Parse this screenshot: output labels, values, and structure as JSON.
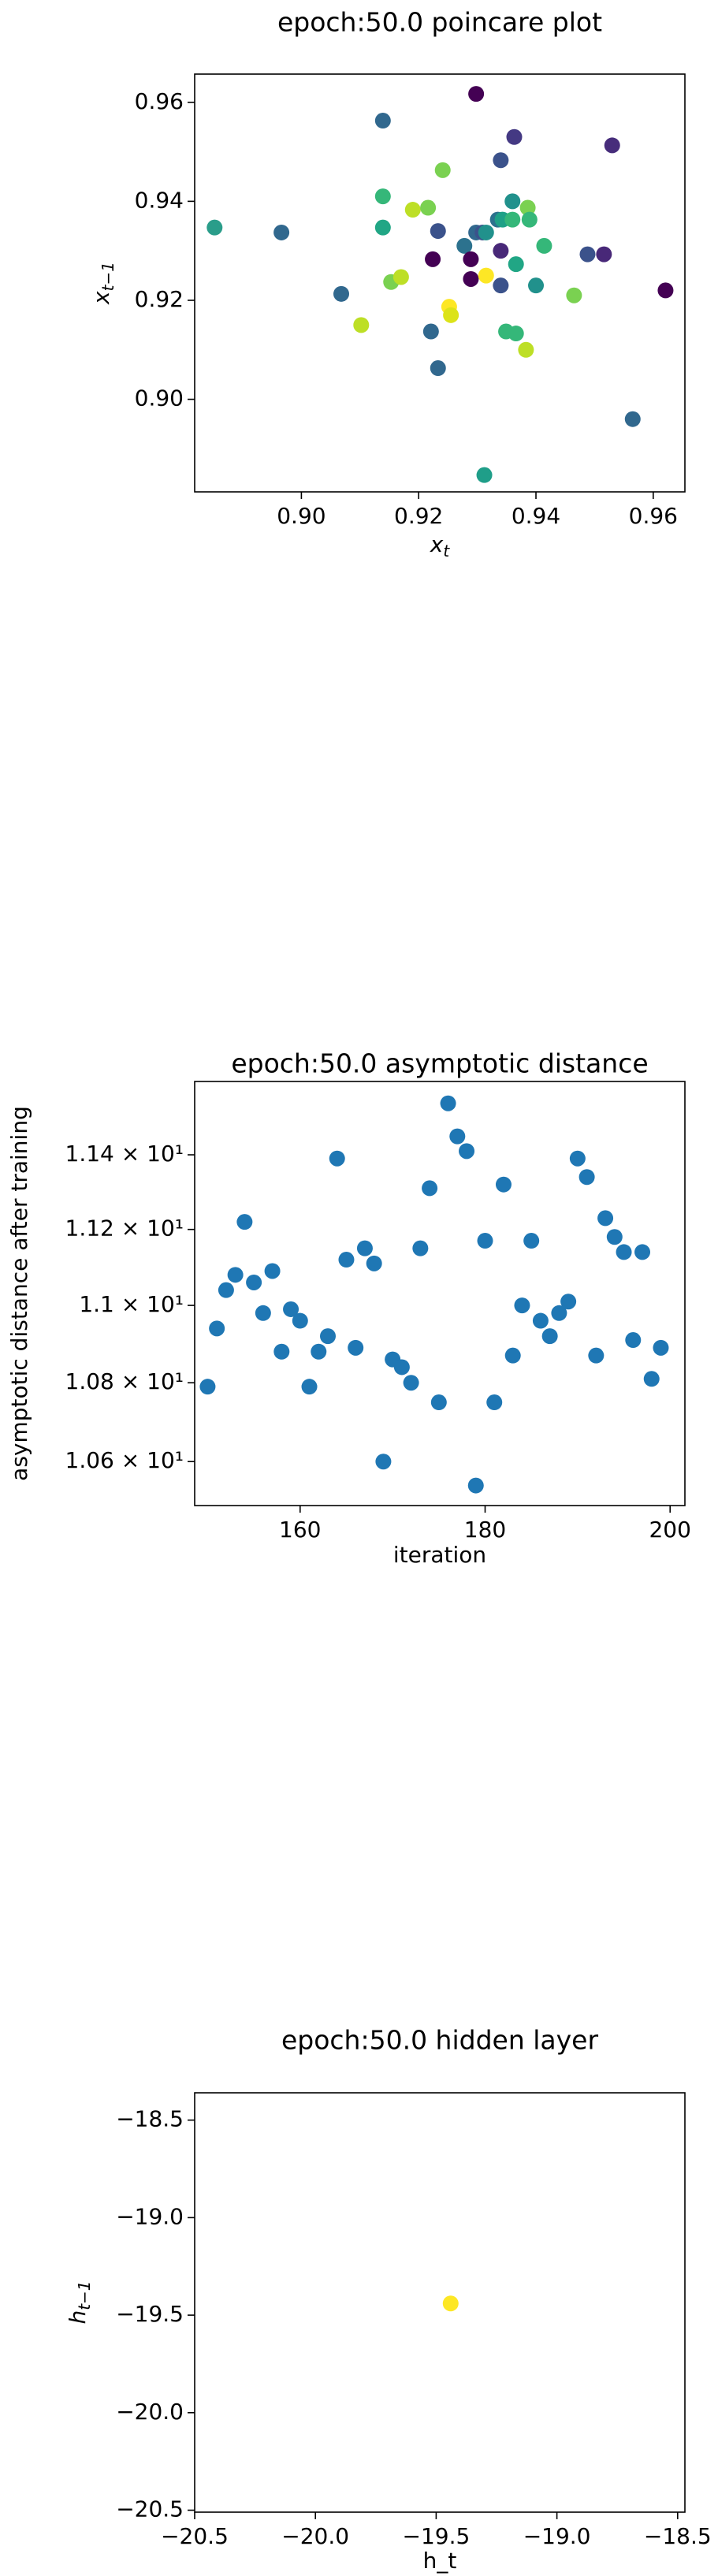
{
  "chart_data": [
    {
      "type": "scatter",
      "title": "epoch:50.0 poincare plot",
      "xlabel": {
        "base": "x",
        "sub": "t"
      },
      "ylabel": {
        "base": "x",
        "sub": "t−1"
      },
      "xlim": [
        0.8818,
        0.9654
      ],
      "ylim": [
        0.8813,
        0.9657
      ],
      "xticks": [
        {
          "value": 0.9,
          "label": "0.90"
        },
        {
          "value": 0.92,
          "label": "0.92"
        },
        {
          "value": 0.94,
          "label": "0.94"
        },
        {
          "value": 0.96,
          "label": "0.96"
        }
      ],
      "yticks": [
        {
          "value": 0.9,
          "label": "0.90"
        },
        {
          "value": 0.92,
          "label": "0.92"
        },
        {
          "value": 0.94,
          "label": "0.94"
        },
        {
          "value": 0.96,
          "label": "0.96"
        }
      ],
      "x": [
        0.8852,
        0.8966,
        0.9068,
        0.9102,
        0.9139,
        0.9139,
        0.9139,
        0.9153,
        0.917,
        0.919,
        0.9216,
        0.9221,
        0.9224,
        0.9233,
        0.9233,
        0.9241,
        0.9252,
        0.9255,
        0.9278,
        0.9289,
        0.9289,
        0.9298,
        0.9298,
        0.9309,
        0.9315,
        0.9315,
        0.9312,
        0.9335,
        0.934,
        0.9343,
        0.934,
        0.934,
        0.9349,
        0.936,
        0.936,
        0.9363,
        0.9366,
        0.9366,
        0.9383,
        0.9386,
        0.9389,
        0.94,
        0.9414,
        0.9465,
        0.9488,
        0.9516,
        0.953,
        0.9565,
        0.9621
      ],
      "y": [
        0.9347,
        0.9337,
        0.9213,
        0.915,
        0.9563,
        0.941,
        0.9347,
        0.9237,
        0.9247,
        0.9383,
        0.9387,
        0.9137,
        0.9283,
        0.934,
        0.9063,
        0.9463,
        0.9187,
        0.917,
        0.931,
        0.9283,
        0.9243,
        0.9617,
        0.9337,
        0.9337,
        0.925,
        0.9337,
        0.8847,
        0.9363,
        0.9483,
        0.9363,
        0.93,
        0.923,
        0.9137,
        0.9363,
        0.94,
        0.953,
        0.9273,
        0.9133,
        0.91,
        0.9387,
        0.9363,
        0.923,
        0.931,
        0.921,
        0.9293,
        0.9293,
        0.9513,
        0.896,
        0.922
      ],
      "colors": [
        "#2a9d8a",
        "#31688e",
        "#31688e",
        "#bddf26",
        "#31688e",
        "#35b779",
        "#21a685",
        "#7ad151",
        "#bddf26",
        "#bddf26",
        "#7ad151",
        "#31688e",
        "#440154",
        "#3b528b",
        "#31688e",
        "#7ad151",
        "#fde725",
        "#dce319",
        "#2c728e",
        "#440154",
        "#440154",
        "#440154",
        "#31688e",
        "#3b528b",
        "#fde725",
        "#21918c",
        "#1f9e89",
        "#2c728e",
        "#3b528b",
        "#1fa187",
        "#482878",
        "#3b528b",
        "#35b779",
        "#35b779",
        "#21918c",
        "#443983",
        "#21a685",
        "#35b779",
        "#bddf26",
        "#7ad151",
        "#35b779",
        "#21918c",
        "#35b779",
        "#7ad151",
        "#3b528b",
        "#482878",
        "#472d7b",
        "#31688e",
        "#440154"
      ]
    },
    {
      "type": "scatter",
      "title": "epoch:50.0 asymptotic distance",
      "xlabel": "iteration",
      "ylabel": "asymptotic distance after training",
      "ylog": true,
      "color": "#1f77b4",
      "xlim": [
        148.6,
        201.6
      ],
      "ylim": [
        10.49,
        11.6
      ],
      "xticks": [
        160,
        180,
        200
      ],
      "yticks": [
        {
          "value": 10.6,
          "label": "1.06 × 10¹"
        },
        {
          "value": 10.8,
          "label": "1.08 × 10¹"
        },
        {
          "value": 11.0,
          "label": "1.1 × 10¹"
        },
        {
          "value": 11.2,
          "label": "1.12 × 10¹"
        },
        {
          "value": 11.4,
          "label": "1.14 × 10¹"
        }
      ],
      "x": [
        150,
        151,
        152,
        153,
        154,
        155,
        156,
        157,
        158,
        159,
        160,
        161,
        162,
        163,
        164,
        165,
        166,
        167,
        168,
        169,
        170,
        171,
        172,
        173,
        174,
        175,
        176,
        177,
        178,
        179,
        180,
        181,
        182,
        183,
        184,
        185,
        186,
        187,
        188,
        189,
        190,
        191,
        192,
        193,
        194,
        195,
        196,
        197,
        198,
        199
      ],
      "y": [
        10.79,
        10.94,
        11.04,
        11.08,
        11.22,
        11.06,
        10.98,
        11.09,
        10.88,
        10.99,
        10.96,
        10.79,
        10.88,
        10.92,
        11.39,
        11.12,
        10.89,
        11.15,
        11.11,
        10.6,
        10.86,
        10.84,
        10.8,
        11.15,
        11.31,
        10.75,
        11.54,
        11.45,
        11.41,
        10.54,
        11.17,
        10.75,
        11.32,
        10.87,
        11.0,
        11.17,
        10.96,
        10.92,
        10.98,
        11.01,
        11.39,
        11.34,
        10.87,
        11.23,
        11.18,
        11.14,
        10.91,
        11.14,
        10.81,
        10.89
      ]
    },
    {
      "type": "scatter",
      "title": "epoch:50.0 hidden layer",
      "xlabel": "h_t",
      "ylabel": {
        "base": "h",
        "sub": "t−1"
      },
      "xlim": [
        -20.5,
        -18.47
      ],
      "ylim": [
        -20.51,
        -18.36
      ],
      "xticks": [
        {
          "value": -20.5,
          "label": "−20.5"
        },
        {
          "value": -20.0,
          "label": "−20.0"
        },
        {
          "value": -19.5,
          "label": "−19.5"
        },
        {
          "value": -19.0,
          "label": "−19.0"
        },
        {
          "value": -18.5,
          "label": "−18.5"
        }
      ],
      "yticks": [
        {
          "value": -20.5,
          "label": "−20.5"
        },
        {
          "value": -20.0,
          "label": "−20.0"
        },
        {
          "value": -19.5,
          "label": "−19.5"
        },
        {
          "value": -19.0,
          "label": "−19.0"
        },
        {
          "value": -18.5,
          "label": "−18.5"
        }
      ],
      "x": [
        -19.44
      ],
      "y": [
        -19.44
      ],
      "colors": [
        "#fde725"
      ]
    }
  ]
}
